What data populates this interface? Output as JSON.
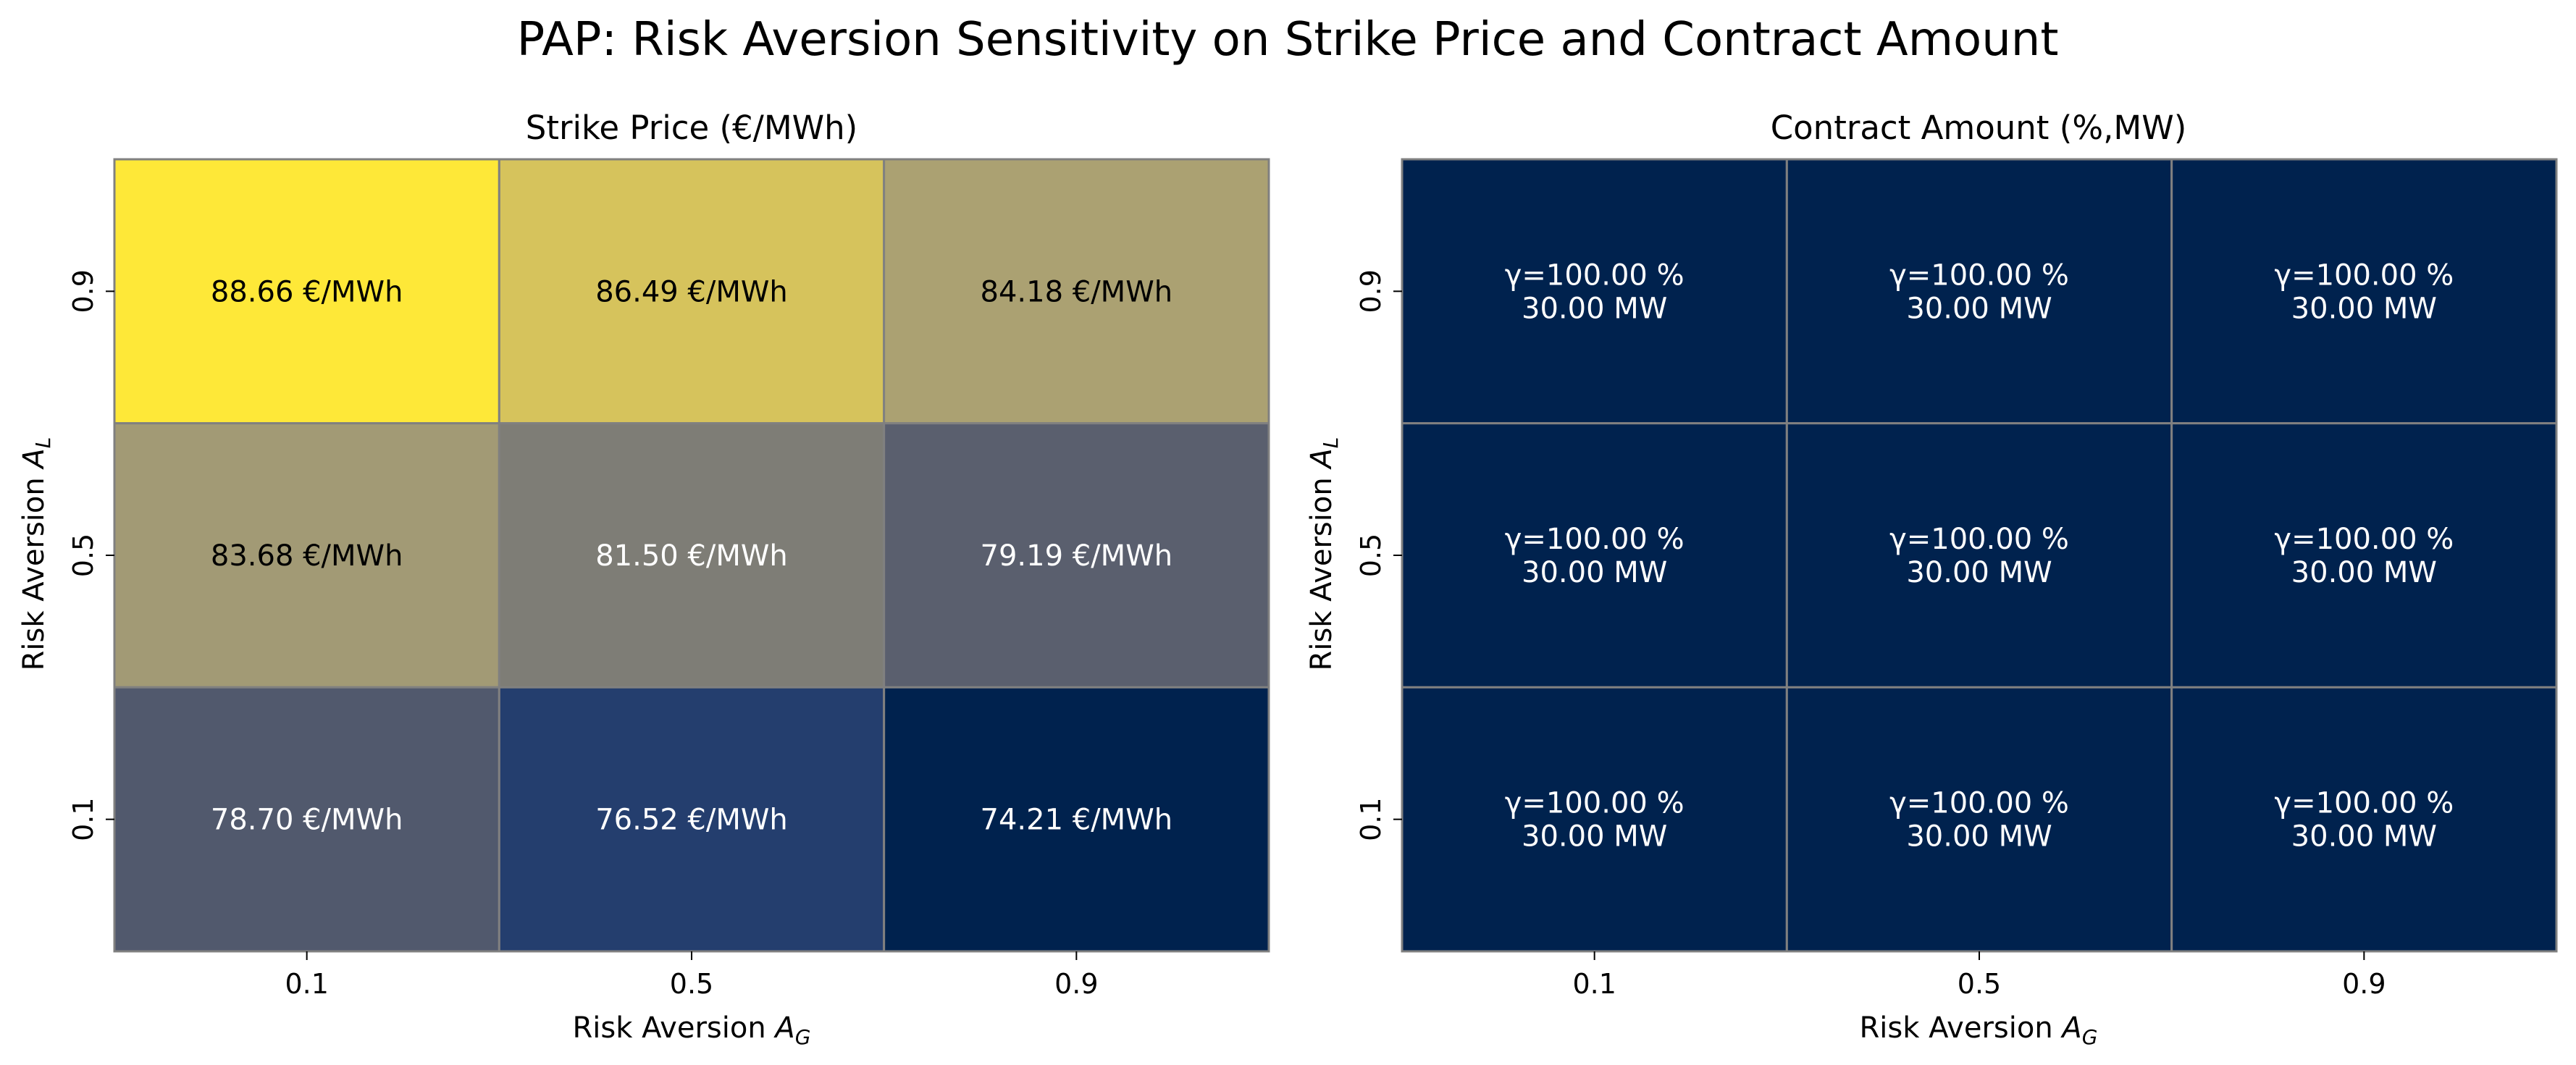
{
  "figure": {
    "suptitle": "PAP: Risk Aversion Sensitivity on Strike Price and Contract Amount"
  },
  "chart_data": [
    {
      "type": "heatmap",
      "title": "Strike Price (€/MWh)",
      "xlabel": "Risk Aversion",
      "xlabel_sub": "G",
      "ylabel": "Risk Aversion",
      "ylabel_sub": "L",
      "x_ticks": [
        "0.1",
        "0.5",
        "0.9"
      ],
      "y_ticks": [
        "0.9",
        "0.5",
        "0.1"
      ],
      "colormap": "cividis",
      "vmin": 74.21,
      "vmax": 88.66,
      "values": [
        [
          88.66,
          86.49,
          84.18
        ],
        [
          83.68,
          81.5,
          79.19
        ],
        [
          78.7,
          76.52,
          74.21
        ]
      ],
      "labels": [
        [
          "88.66 €/MWh",
          "86.49 €/MWh",
          "84.18 €/MWh"
        ],
        [
          "83.68 €/MWh",
          "81.50 €/MWh",
          "79.19 €/MWh"
        ],
        [
          "78.70 €/MWh",
          "76.52 €/MWh",
          "74.21 €/MWh"
        ]
      ],
      "label_colors": [
        [
          "#000000",
          "#000000",
          "#000000"
        ],
        [
          "#000000",
          "#ffffff",
          "#ffffff"
        ],
        [
          "#ffffff",
          "#ffffff",
          "#ffffff"
        ]
      ]
    },
    {
      "type": "heatmap",
      "title": "Contract Amount (%,MW)",
      "xlabel": "Risk Aversion",
      "xlabel_sub": "G",
      "ylabel": "Risk Aversion",
      "ylabel_sub": "L",
      "x_ticks": [
        "0.1",
        "0.5",
        "0.9"
      ],
      "y_ticks": [
        "0.9",
        "0.5",
        "0.1"
      ],
      "colormap": "cividis",
      "values": [
        [
          100.0,
          100.0,
          100.0
        ],
        [
          100.0,
          100.0,
          100.0
        ],
        [
          100.0,
          100.0,
          100.0
        ]
      ],
      "mw_values": [
        [
          30.0,
          30.0,
          30.0
        ],
        [
          30.0,
          30.0,
          30.0
        ],
        [
          30.0,
          30.0,
          30.0
        ]
      ],
      "labels": [
        [
          [
            "γ=100.00 %",
            "30.00 MW"
          ],
          [
            "γ=100.00 %",
            "30.00 MW"
          ],
          [
            "γ=100.00 %",
            "30.00 MW"
          ]
        ],
        [
          [
            "γ=100.00 %",
            "30.00 MW"
          ],
          [
            "γ=100.00 %",
            "30.00 MW"
          ],
          [
            "γ=100.00 %",
            "30.00 MW"
          ]
        ],
        [
          [
            "γ=100.00 %",
            "30.00 MW"
          ],
          [
            "γ=100.00 %",
            "30.00 MW"
          ],
          [
            "γ=100.00 %",
            "30.00 MW"
          ]
        ]
      ],
      "label_colors": [
        [
          "#ffffff",
          "#ffffff",
          "#ffffff"
        ],
        [
          "#ffffff",
          "#ffffff",
          "#ffffff"
        ],
        [
          "#ffffff",
          "#ffffff",
          "#ffffff"
        ]
      ],
      "cell_color": "#00224e"
    }
  ],
  "colors": {
    "grid_line": "#808080",
    "cividis_stops": [
      "#00224e",
      "#123570",
      "#3b496c",
      "#575d6d",
      "#707173",
      "#8a8779",
      "#a59c74",
      "#c3b369",
      "#e1cc55",
      "#fee838"
    ]
  }
}
